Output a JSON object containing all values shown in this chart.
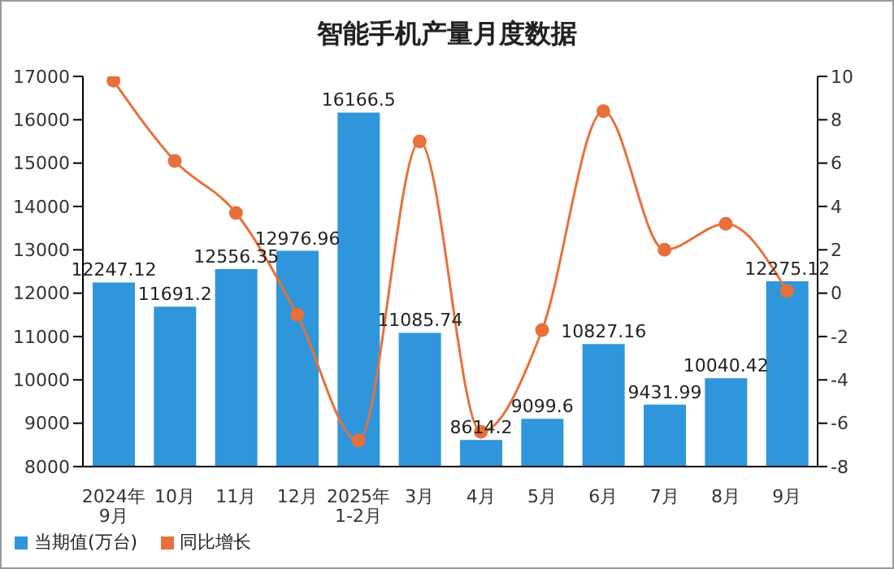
{
  "chart_data": {
    "type": "bar",
    "title": "智能手机产量月度数据",
    "categories": [
      "2024年\n9月",
      "10月",
      "11月",
      "12月",
      "2025年\n1-2月",
      "3月",
      "4月",
      "5月",
      "6月",
      "7月",
      "8月",
      "9月"
    ],
    "series": [
      {
        "name": "当期值(万台)",
        "color": "#2f96dc",
        "values": [
          12247.12,
          11691.2,
          12556.35,
          12976.96,
          16166.5,
          11085.74,
          8614.2,
          9099.6,
          10827.16,
          9431.99,
          10040.42,
          12275.12
        ],
        "value_labels": [
          "12247.12",
          "11691.2",
          "12556.35",
          "12976.96",
          "16166.5",
          "11085.74",
          "8614.2",
          "9099.6",
          "10827.16",
          "9431.99",
          "10040.42",
          "12275.12"
        ]
      },
      {
        "name": "同比增长",
        "type": "line",
        "axis": "y2",
        "color": "#e8703a",
        "values": [
          9.8,
          6.1,
          3.7,
          -1.0,
          -6.8,
          7.0,
          -6.4,
          -1.7,
          8.4,
          2.0,
          3.2,
          0.1
        ]
      }
    ],
    "ylim": [
      8000,
      17000
    ],
    "yticks": [
      8000,
      9000,
      10000,
      11000,
      12000,
      13000,
      14000,
      15000,
      16000,
      17000
    ],
    "y2lim": [
      -8,
      10
    ],
    "y2ticks": [
      -8,
      -6,
      -4,
      -2,
      0,
      2,
      4,
      6,
      8,
      10
    ],
    "grid": false,
    "legend": "bottom left",
    "marker": "circle",
    "line_style": "solid"
  }
}
